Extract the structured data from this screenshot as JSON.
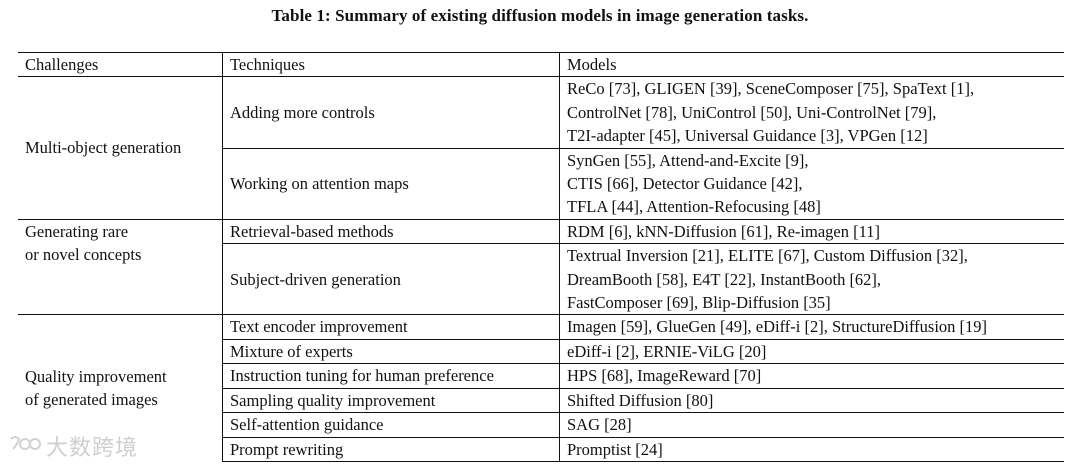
{
  "caption": "Table 1: Summary of existing diffusion models in image generation tasks.",
  "headers": [
    "Challenges",
    "Techniques",
    "Models"
  ],
  "groups": {
    "g1": {
      "challenge": "Multi-object generation",
      "rows": [
        {
          "technique": "Adding more controls",
          "models": [
            "ReCo [73], GLIGEN [39], SceneComposer [75], SpaText [1],",
            "ControlNet [78], UniControl [50], Uni-ControlNet [79],",
            "T2I-adapter [45], Universal Guidance [3], VPGen [12]"
          ]
        },
        {
          "technique": "Working on attention maps",
          "models": [
            "SynGen [55], Attend-and-Excite [9],",
            "CTIS [66], Detector Guidance [42],",
            "TFLA [44], Attention-Refocusing [48]"
          ]
        }
      ]
    },
    "g2": {
      "challenge_lines": [
        "Generating rare",
        "or novel concepts"
      ],
      "rows": [
        {
          "technique": "Retrieval-based methods",
          "models": [
            "RDM [6], kNN-Diffusion [61], Re-imagen [11]"
          ]
        },
        {
          "technique": "Subject-driven generation",
          "models": [
            "Textrual Inversion [21], ELITE [67], Custom Diffusion [32],",
            "DreamBooth [58], E4T [22], InstantBooth [62],",
            "FastComposer [69], Blip-Diffusion [35]"
          ]
        }
      ]
    },
    "g3": {
      "challenge_lines": [
        "Quality improvement",
        "of generated images"
      ],
      "rows": [
        {
          "technique": "Text encoder improvement",
          "models": [
            "Imagen [59], GlueGen [49], eDiff-i [2], StructureDiffusion [19]"
          ]
        },
        {
          "technique": "Mixture of experts",
          "models": [
            "eDiff-i [2], ERNIE-ViLG [20]"
          ]
        },
        {
          "technique": "Instruction tuning for human preference",
          "models": [
            "HPS [68], ImageReward [70]"
          ]
        },
        {
          "technique": "Sampling quality improvement",
          "models": [
            "Shifted Diffusion [80]"
          ]
        },
        {
          "technique": "Self-attention guidance",
          "models": [
            "SAG [28]"
          ]
        },
        {
          "technique": "Prompt rewriting",
          "models": [
            "Promptist [24]"
          ]
        }
      ]
    }
  },
  "watermark": "大数跨境"
}
